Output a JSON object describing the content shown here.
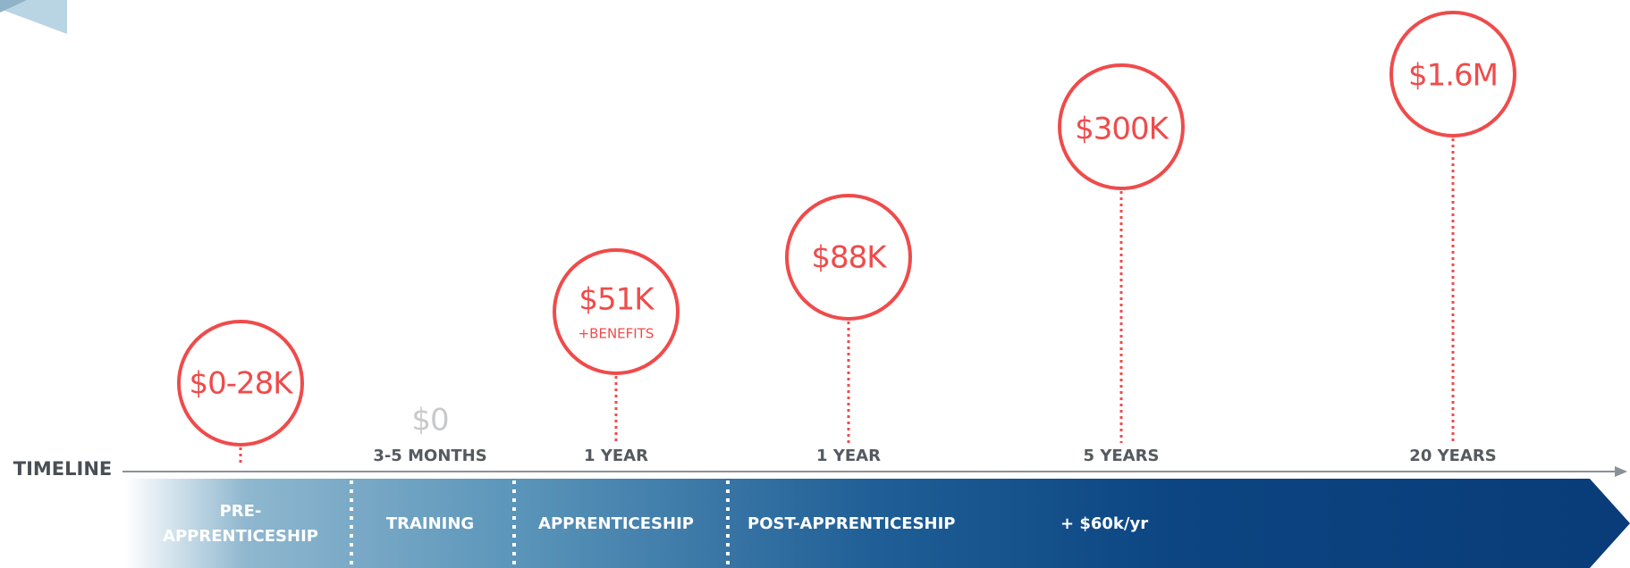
{
  "timeline_label": "TIMELINE",
  "milestones": [
    {
      "amount": "$0-28K"
    },
    {
      "amount": "$0",
      "duration": "3-5 MONTHS"
    },
    {
      "amount": "$51K",
      "note": "+BENEFITS",
      "duration": "1 YEAR"
    },
    {
      "amount": "$88K",
      "duration": "1 YEAR"
    },
    {
      "amount": "$300K",
      "duration": "5 YEARS"
    },
    {
      "amount": "$1.6M",
      "duration": "20 YEARS"
    }
  ],
  "phases": [
    {
      "lines": [
        "PRE-",
        "APPRENTICESHIP"
      ]
    },
    {
      "label": "TRAINING"
    },
    {
      "label": "APPRENTICESHIP"
    },
    {
      "label": "POST-APPRENTICESHIP"
    },
    {
      "label": "+ $60k/yr"
    }
  ]
}
